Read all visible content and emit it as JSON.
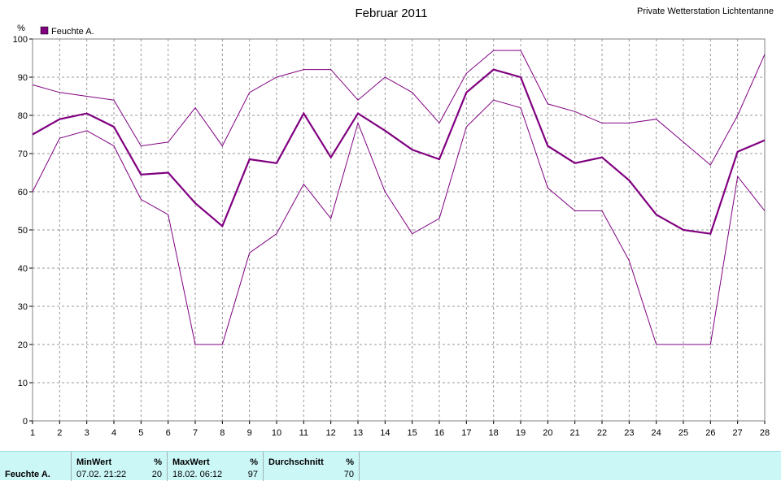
{
  "header": {
    "title": "Februar 2011",
    "station": "Private Wetterstation Lichtentanne"
  },
  "legend": {
    "label": "Feuchte A.",
    "color": "#800080"
  },
  "chart_data": {
    "type": "line",
    "title": "Februar 2011",
    "y_unit": "%",
    "ylim": [
      0,
      100
    ],
    "yticks": [
      0,
      10,
      20,
      30,
      40,
      50,
      60,
      70,
      80,
      90,
      100
    ],
    "x": [
      1,
      2,
      3,
      4,
      5,
      6,
      7,
      8,
      9,
      10,
      11,
      12,
      13,
      14,
      15,
      16,
      17,
      18,
      19,
      20,
      21,
      22,
      23,
      24,
      25,
      26,
      27,
      28
    ],
    "xlim": [
      1,
      28
    ],
    "grid": true,
    "legend_position": "top-left",
    "series": [
      {
        "role": "max",
        "color": "#800080",
        "values": [
          88,
          86,
          85,
          84,
          72,
          73,
          82,
          72,
          86,
          90,
          92,
          92,
          84,
          90,
          86,
          78,
          91,
          97,
          97,
          83,
          81,
          78,
          78,
          79,
          73,
          67,
          80,
          96
        ]
      },
      {
        "name": "Feuchte A.",
        "role": "avg",
        "color": "#800080",
        "values": [
          75,
          79,
          80.5,
          77,
          64.5,
          65,
          57,
          51,
          68.5,
          67.5,
          80.5,
          69,
          80.5,
          76,
          71,
          68.5,
          86,
          92,
          90,
          72,
          67.5,
          69,
          63,
          54,
          50,
          49,
          70.5,
          73.5
        ]
      },
      {
        "role": "min",
        "color": "#800080",
        "values": [
          60,
          74,
          76,
          72,
          58,
          54,
          20,
          20,
          44,
          49,
          62,
          53,
          78,
          60,
          49,
          53,
          77,
          84,
          82,
          61,
          55,
          55,
          42,
          20,
          20,
          20,
          64,
          55
        ]
      }
    ]
  },
  "stats": {
    "row_label": "Feuchte A.",
    "min": {
      "header": "MinWert",
      "unit": "%",
      "datetime": "07.02.  21:22",
      "value": "20"
    },
    "max": {
      "header": "MaxWert",
      "unit": "%",
      "datetime": "18.02.  06:12",
      "value": "97"
    },
    "avg": {
      "header": "Durchschnitt",
      "unit": "%",
      "value": "70"
    }
  }
}
